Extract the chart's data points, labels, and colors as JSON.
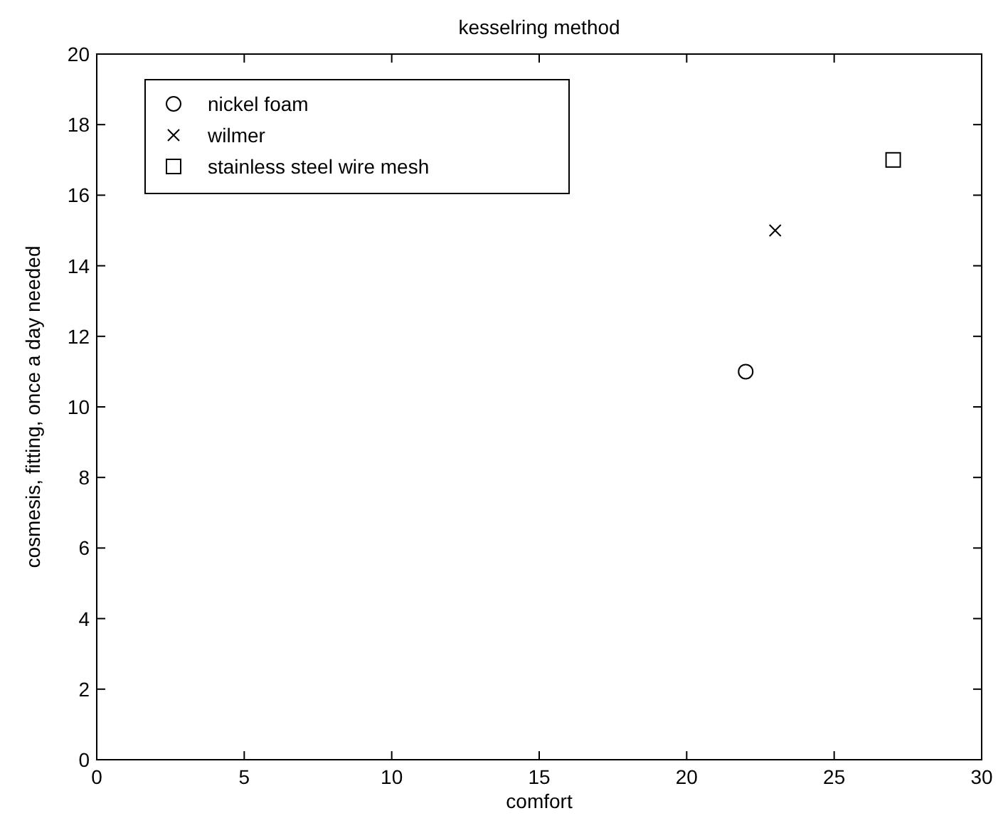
{
  "chart_data": {
    "type": "scatter",
    "title": "kesselring method",
    "xlabel": "comfort",
    "ylabel": "cosmesis, fitting, once a day needed",
    "xlim": [
      0,
      30
    ],
    "xticks": [
      0,
      5,
      10,
      15,
      20,
      25,
      30
    ],
    "ylim": [
      0,
      20
    ],
    "yticks": [
      0,
      2,
      4,
      6,
      8,
      10,
      12,
      14,
      16,
      18,
      20
    ],
    "grid": false,
    "legend": "top left",
    "series": [
      {
        "name": "nickel foam",
        "color": "#000000",
        "x": [
          22
        ],
        "values": [
          11
        ],
        "marker": "circle"
      },
      {
        "name": "wilmer",
        "color": "#000000",
        "x": [
          23
        ],
        "values": [
          15
        ],
        "marker": "cross"
      },
      {
        "name": "stainless steel wire mesh",
        "color": "#000000",
        "x": [
          27
        ],
        "values": [
          17
        ],
        "marker": "square"
      }
    ]
  }
}
